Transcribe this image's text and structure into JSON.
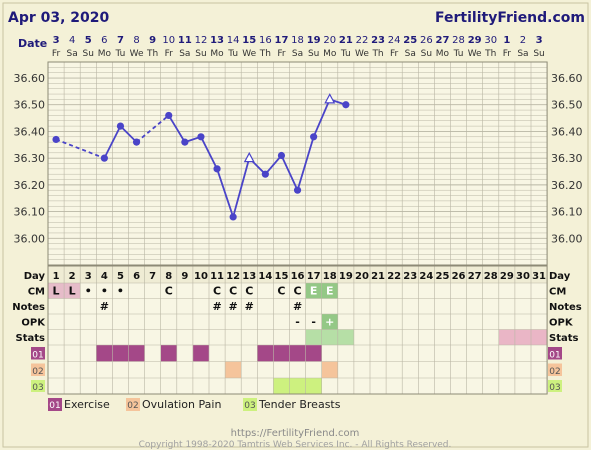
{
  "header": {
    "date": "Apr 03, 2020",
    "site": "FertilityFriend.com",
    "date_label": "Date"
  },
  "chart_data": {
    "type": "line",
    "title": "",
    "xlabel": "",
    "ylabel": "",
    "ylim": [
      35.9,
      36.66
    ],
    "y_ticks": [
      "36.60",
      "36.50",
      "36.40",
      "36.30",
      "36.20",
      "36.10",
      "36.00"
    ],
    "date_numbers": [
      "3",
      "4",
      "5",
      "6",
      "7",
      "8",
      "9",
      "10",
      "11",
      "12",
      "13",
      "14",
      "15",
      "16",
      "17",
      "18",
      "19",
      "20",
      "21",
      "22",
      "23",
      "24",
      "25",
      "26",
      "27",
      "28",
      "29",
      "30",
      "1",
      "2",
      "3"
    ],
    "weekdays": [
      "Fr",
      "Sa",
      "Su",
      "Mo",
      "Tu",
      "We",
      "Th",
      "Fr",
      "Sa",
      "Su",
      "Mo",
      "Tu",
      "We",
      "Th",
      "Fr",
      "Sa",
      "Su",
      "Mo",
      "Tu",
      "We",
      "Th",
      "Fr",
      "Sa",
      "Su",
      "Mo",
      "Tu",
      "We",
      "Th",
      "Fr",
      "Sa",
      "Su"
    ],
    "cycle_days": [
      "1",
      "2",
      "3",
      "4",
      "5",
      "6",
      "7",
      "8",
      "9",
      "10",
      "11",
      "12",
      "13",
      "14",
      "15",
      "16",
      "17",
      "18",
      "19",
      "20",
      "21",
      "22",
      "23",
      "24",
      "25",
      "26",
      "27",
      "28",
      "29",
      "30",
      "31"
    ],
    "series": [
      {
        "days": [
          1,
          4,
          5,
          6,
          8,
          9,
          10,
          11,
          12,
          13,
          14,
          15,
          16,
          17,
          18,
          19
        ],
        "values": [
          36.37,
          36.3,
          36.42,
          36.36,
          36.46,
          36.36,
          36.38,
          36.26,
          36.08,
          36.3,
          36.24,
          36.31,
          36.18,
          36.38,
          36.52,
          36.5
        ],
        "open_markers_days": [
          13,
          18
        ],
        "dashed_segments": [
          [
            1,
            4
          ],
          [
            6,
            8
          ]
        ]
      }
    ],
    "row_labels": {
      "day": "Day",
      "cm": "CM",
      "notes": "Notes",
      "opk": "OPK",
      "stats": "Stats",
      "r1": "01",
      "r2": "02",
      "r3": "03"
    },
    "cm": [
      {
        "day": 1,
        "text": "L",
        "fill": "#e6bcc9"
      },
      {
        "day": 2,
        "text": "L",
        "fill": "#e6bcc9"
      },
      {
        "day": 3,
        "text": "•"
      },
      {
        "day": 4,
        "text": "•"
      },
      {
        "day": 5,
        "text": "•"
      },
      {
        "day": 8,
        "text": "C"
      },
      {
        "day": 11,
        "text": "C"
      },
      {
        "day": 12,
        "text": "C"
      },
      {
        "day": 13,
        "text": "C"
      },
      {
        "day": 15,
        "text": "C"
      },
      {
        "day": 16,
        "text": "C"
      },
      {
        "day": 17,
        "text": "E",
        "fill": "#94c886",
        "color": "#ffffff"
      },
      {
        "day": 18,
        "text": "E",
        "fill": "#94c886",
        "color": "#ffffff"
      }
    ],
    "notes": [
      {
        "day": 4,
        "text": "#"
      },
      {
        "day": 11,
        "text": "#"
      },
      {
        "day": 12,
        "text": "#"
      },
      {
        "day": 13,
        "text": "#"
      },
      {
        "day": 16,
        "text": "#"
      }
    ],
    "opk": [
      {
        "day": 16,
        "text": "-"
      },
      {
        "day": 17,
        "text": "-"
      },
      {
        "day": 18,
        "text": "+",
        "fill": "#94c886",
        "color": "#ffffff"
      }
    ],
    "stats": [
      {
        "day": 17,
        "fill": "#b6dfa6"
      },
      {
        "day": 18,
        "fill": "#b6dfa6"
      },
      {
        "day": 19,
        "fill": "#b6dfa6"
      },
      {
        "day": 29,
        "fill": "#eab6c6"
      },
      {
        "day": 30,
        "fill": "#eab6c6"
      },
      {
        "day": 31,
        "fill": "#eab6c6"
      }
    ],
    "r1_days": [
      4,
      5,
      6,
      8,
      10,
      14,
      15,
      16,
      17
    ],
    "r2_days": [
      12,
      18
    ],
    "r3_days": [
      15,
      16,
      17
    ],
    "colors": {
      "r1": "#a44888",
      "r2": "#f5c49b",
      "r3": "#cdf17f",
      "line": "#4a44c8",
      "grid": "#b9b6a4",
      "plot_bg": "#f8f6e4",
      "label": "#1f1a7a"
    },
    "legend": [
      {
        "code": "01",
        "label": "Exercise"
      },
      {
        "code": "02",
        "label": "Ovulation Pain"
      },
      {
        "code": "03",
        "label": "Tender Breasts"
      }
    ]
  },
  "footer": {
    "url": "https://FertilityFriend.com",
    "copyright": "Copyright 1998-2020 Tamtris Web Services Inc. - All Rights Reserved."
  }
}
